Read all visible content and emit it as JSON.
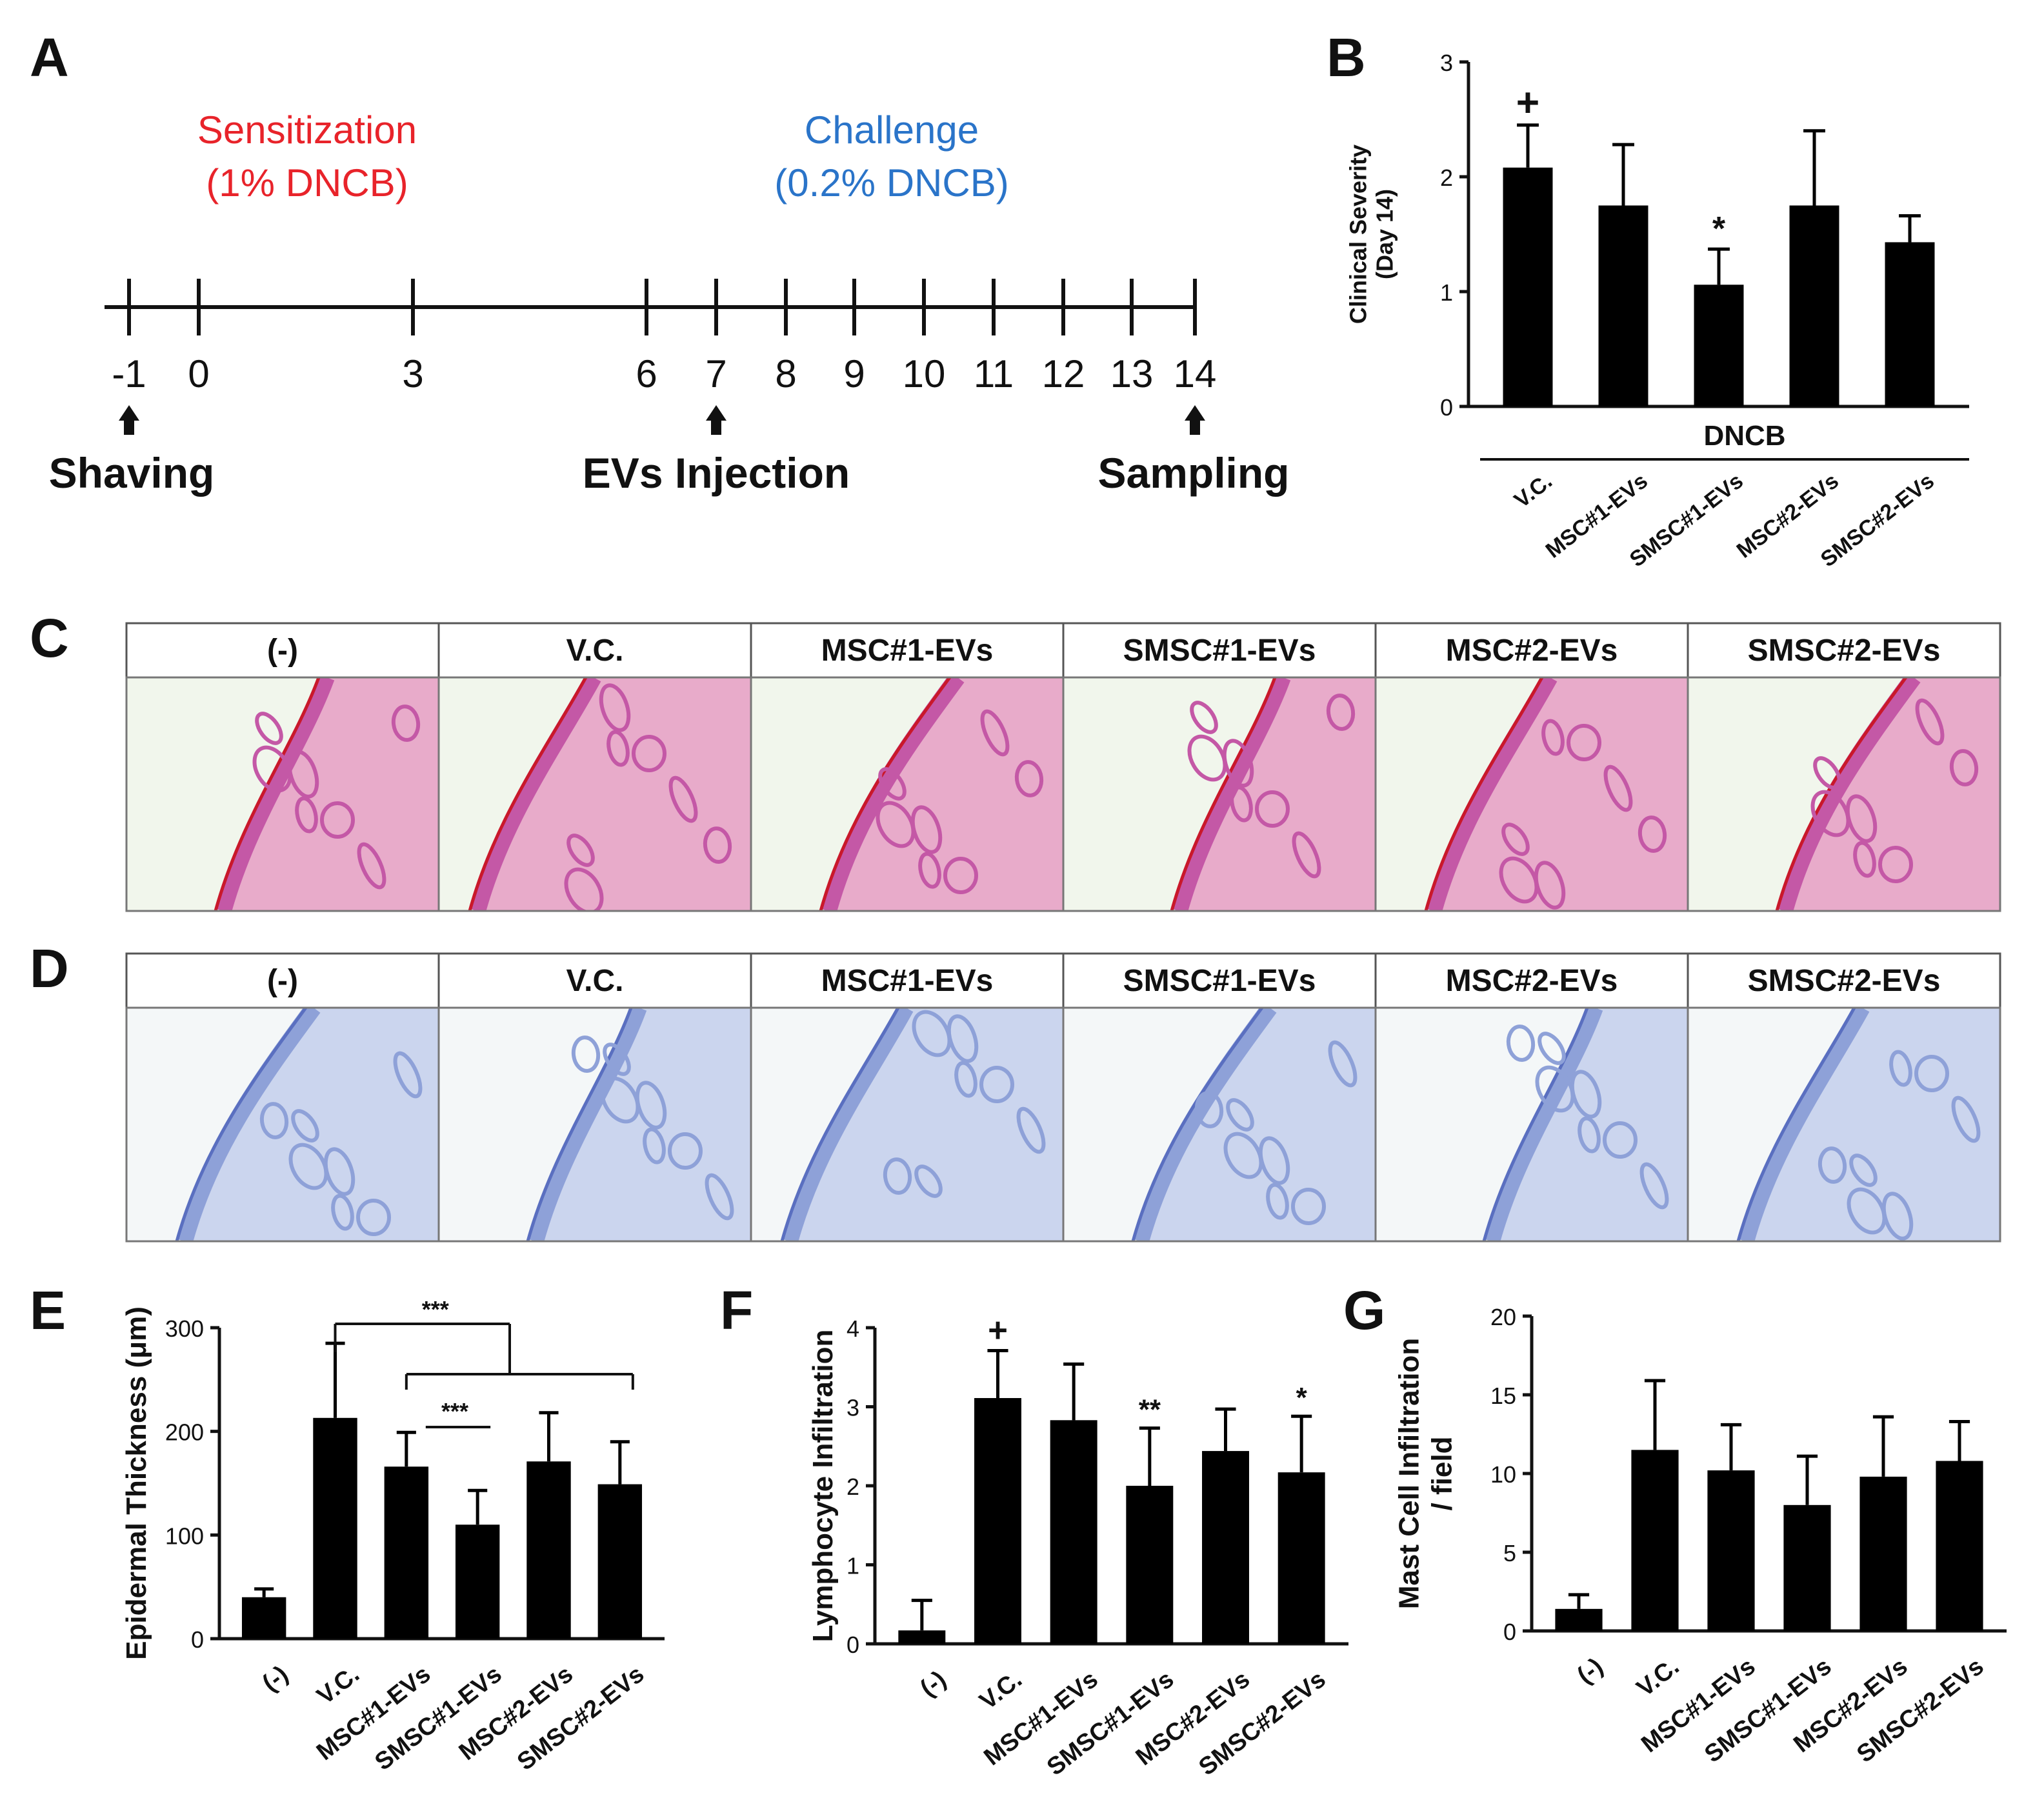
{
  "panel_labels": [
    "A",
    "B",
    "C",
    "D",
    "E",
    "F",
    "G"
  ],
  "timeline": {
    "sensitization": {
      "title": "Sensitization",
      "dose": "(1% DNCB)",
      "color": "#e8232a"
    },
    "challenge": {
      "title": "Challenge",
      "dose": "(0.2% DNCB)",
      "color": "#2a74c9"
    },
    "days": [
      "-1",
      "0",
      "3",
      "6",
      "7",
      "8",
      "9",
      "10",
      "11",
      "12",
      "13",
      "14"
    ],
    "events": [
      {
        "day": "-1",
        "label": "Shaving"
      },
      {
        "day": "7",
        "label": "EVs Injection"
      },
      {
        "day": "14",
        "label": "Sampling"
      }
    ]
  },
  "histology": {
    "groups": [
      "(-)",
      "V.C.",
      "MSC#1-EVs",
      "SMSC#1-EVs",
      "MSC#2-EVs",
      "SMSC#2-EVs"
    ],
    "he_stain": {
      "background": "#f1f6ec",
      "tissue": "#c458a6",
      "dermis": "#e7a3c6",
      "edge": "#c9182b"
    },
    "tb_stain": {
      "background": "#f4f7f8",
      "tissue": "#8ea1d8",
      "dermis": "#c6d0ec",
      "edge": "#5a6fc0"
    }
  },
  "chart_data": [
    {
      "id": "B",
      "type": "bar",
      "title": "",
      "xlabel": "DNCB",
      "ylabel": [
        "Clinical Severity",
        "(Day 14)"
      ],
      "categories": [
        "V.C.",
        "MSC#1-EVs",
        "SMSC#1-EVs",
        "MSC#2-EVs",
        "SMSC#2-EVs"
      ],
      "values": [
        2.08,
        1.75,
        1.06,
        1.75,
        1.43
      ],
      "errors": [
        0.37,
        0.53,
        0.31,
        0.65,
        0.23
      ],
      "marks": [
        "+",
        "",
        "*",
        "",
        ""
      ],
      "ylim": [
        0,
        3
      ],
      "yticks": [
        "0",
        "1",
        "2",
        "3"
      ]
    },
    {
      "id": "E",
      "type": "bar",
      "title": "",
      "xlabel": "",
      "ylabel": [
        "Epidermal Thickness (μm)"
      ],
      "categories": [
        "(-)",
        "V.C.",
        "MSC#1-EVs",
        "SMSC#1-EVs",
        "MSC#2-EVs",
        "SMSC#2-EVs"
      ],
      "values": [
        40,
        213,
        166,
        110,
        171,
        149
      ],
      "errors": [
        8,
        72,
        33,
        33,
        47,
        41
      ],
      "marks": [
        "",
        "",
        "",
        "",
        "",
        ""
      ],
      "ylim": [
        0,
        300
      ],
      "yticks": [
        "0",
        "100",
        "200",
        "300"
      ],
      "comparisons": [
        {
          "label": "***",
          "from": 1,
          "to": [
            2,
            3,
            4,
            5
          ]
        },
        {
          "label": "***",
          "from": 2,
          "to": [
            3
          ]
        }
      ]
    },
    {
      "id": "F",
      "type": "bar",
      "title": "",
      "xlabel": "",
      "ylabel": [
        "Lymphocyte Infiltration"
      ],
      "categories": [
        "(-)",
        "V.C.",
        "MSC#1-EVs",
        "SMSC#1-EVs",
        "MSC#2-EVs",
        "SMSC#2-EVs"
      ],
      "values": [
        0.17,
        3.11,
        2.83,
        2.0,
        2.44,
        2.17
      ],
      "errors": [
        0.38,
        0.6,
        0.71,
        0.73,
        0.53,
        0.71
      ],
      "marks": [
        "",
        "+",
        "",
        "**",
        "",
        "*"
      ],
      "ylim": [
        0,
        4
      ],
      "yticks": [
        "0",
        "1",
        "2",
        "3",
        "4"
      ]
    },
    {
      "id": "G",
      "type": "bar",
      "title": "",
      "xlabel": "",
      "ylabel": [
        "Mast Cell Infiltration",
        "/ field"
      ],
      "categories": [
        "(-)",
        "V.C.",
        "MSC#1-EVs",
        "SMSC#1-EVs",
        "MSC#2-EVs",
        "SMSC#2-EVs"
      ],
      "values": [
        1.4,
        11.5,
        10.2,
        8.0,
        9.8,
        10.8
      ],
      "errors": [
        0.9,
        4.4,
        2.9,
        3.1,
        3.8,
        2.5
      ],
      "marks": [
        "",
        "",
        "",
        "",
        "",
        ""
      ],
      "ylim": [
        0,
        20
      ],
      "yticks": [
        "0",
        "5",
        "10",
        "15",
        "20"
      ]
    }
  ]
}
